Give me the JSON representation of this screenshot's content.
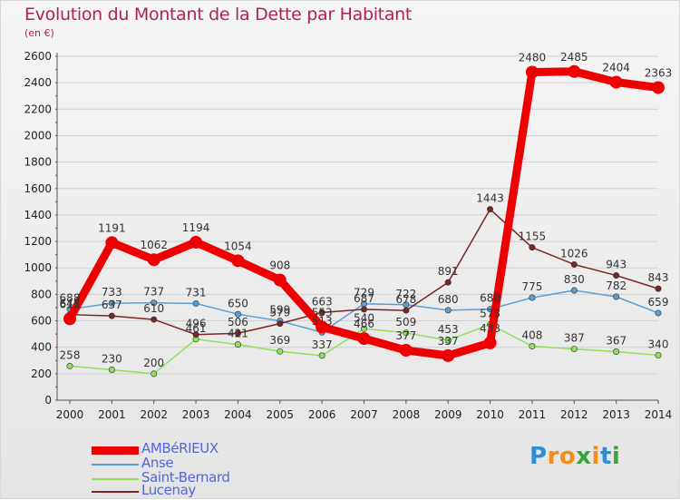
{
  "header": {
    "title": "Evolution du Montant de la Dette par Habitant",
    "subtitle": "(en €)"
  },
  "logo": {
    "text": "Proxiti",
    "letter_colors": [
      "#2e8fd6",
      "#f28c1e",
      "#f28c1e",
      "#3aa63a",
      "#f28c1e",
      "#2e8fd6",
      "#3aa63a"
    ]
  },
  "chart_data": {
    "type": "line",
    "title": "Evolution du Montant de la Dette par Habitant",
    "subtitle": "(en €)",
    "xlabel": "",
    "ylabel": "",
    "ylim": [
      0,
      2600
    ],
    "yticks": [
      0,
      200,
      400,
      600,
      800,
      1000,
      1200,
      1400,
      1600,
      1800,
      2000,
      2200,
      2400,
      2600
    ],
    "categories": [
      "2000",
      "2001",
      "2002",
      "2003",
      "2004",
      "2005",
      "2006",
      "2007",
      "2008",
      "2009",
      "2010",
      "2011",
      "2012",
      "2013",
      "2014"
    ],
    "grid": "horizontal",
    "legend_position": "bottom-left",
    "series": [
      {
        "name": "Anse",
        "color": "#5a9fd4",
        "values": [
          688,
          733,
          737,
          731,
          650,
          599,
          513,
          729,
          722,
          680,
          688,
          775,
          830,
          782,
          659
        ],
        "labels": [
          "688",
          "733",
          "737",
          "731",
          "650",
          "599",
          "513",
          "729",
          "722",
          "680",
          "688",
          "775",
          "830",
          "782",
          "659"
        ]
      },
      {
        "name": "Saint-Bernard",
        "color": "#8fe05a",
        "values": [
          258,
          230,
          200,
          461,
          421,
          369,
          337,
          540,
          509,
          453,
          573,
          408,
          387,
          367,
          340
        ],
        "labels": [
          "258",
          "230",
          "200",
          "461",
          "421",
          "369",
          "337",
          "540",
          "509",
          "453",
          "573",
          "408",
          "387",
          "367",
          "340"
        ]
      },
      {
        "name": "Lucenay",
        "color": "#7a2424",
        "values": [
          647,
          637,
          610,
          496,
          506,
          579,
          663,
          687,
          678,
          891,
          1443,
          1155,
          1026,
          943,
          843
        ],
        "labels": [
          "647",
          "637",
          "610",
          "496",
          "506",
          "579",
          "663",
          "687",
          "678",
          "891",
          "1443",
          "1155",
          "1026",
          "943",
          "843"
        ]
      },
      {
        "name": "AMBéRIEUX",
        "color": "#ee0000",
        "values": [
          615,
          1191,
          1062,
          1194,
          1054,
          908,
          553,
          466,
          377,
          337,
          433,
          2480,
          2485,
          2404,
          2363
        ],
        "labels": [
          "615",
          "1191",
          "1062",
          "1194",
          "1054",
          "908",
          "553",
          "466",
          "377",
          "337",
          "433",
          "2480",
          "2485",
          "2404",
          "2363"
        ]
      }
    ]
  },
  "legend": {
    "items": [
      {
        "name": "AMBéRIEUX",
        "color": "#ee0000",
        "thick": true
      },
      {
        "name": "Anse",
        "color": "#5a9fd4",
        "thick": false
      },
      {
        "name": "Saint-Bernard",
        "color": "#8fe05a",
        "thick": false
      },
      {
        "name": "Lucenay",
        "color": "#7a2424",
        "thick": false
      }
    ]
  }
}
